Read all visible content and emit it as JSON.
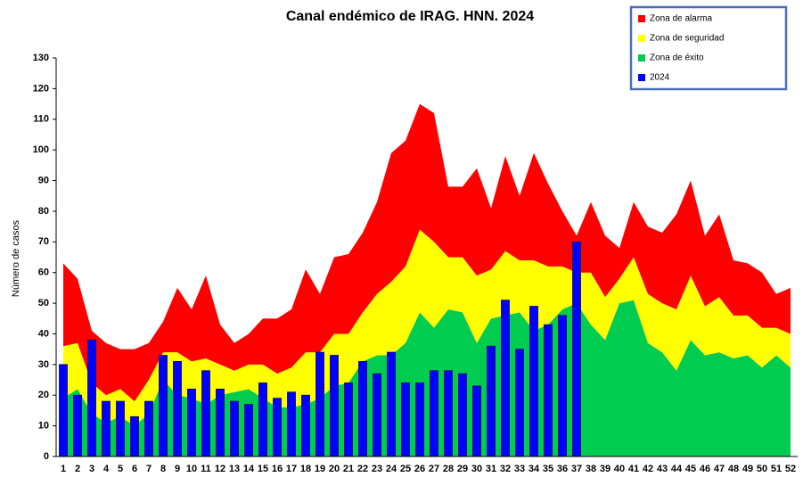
{
  "chart_data": {
    "type": "area",
    "title": "Canal endémico de IRAG. HNN. 2024",
    "y_label": "Número de casos",
    "categories": [
      "1",
      "2",
      "3",
      "4",
      "5",
      "6",
      "7",
      "8",
      "9",
      "10",
      "11",
      "12",
      "13",
      "14",
      "15",
      "16",
      "17",
      "18",
      "19",
      "20",
      "21",
      "22",
      "23",
      "24",
      "25",
      "26",
      "27",
      "28",
      "29",
      "30",
      "31",
      "32",
      "33",
      "34",
      "35",
      "36",
      "37",
      "38",
      "39",
      "40",
      "41",
      "42",
      "43",
      "44",
      "45",
      "46",
      "47",
      "48",
      "49",
      "50",
      "51",
      "52"
    ],
    "series": [
      {
        "name": "Zona de alarma",
        "color": "#ff0000",
        "type": "area",
        "values": [
          27,
          21,
          17,
          17,
          13,
          17,
          12,
          10,
          21,
          17,
          27,
          13,
          9,
          10,
          15,
          18,
          19,
          27,
          19,
          25,
          26,
          26,
          30,
          42,
          41,
          41,
          42,
          23,
          23,
          35,
          20,
          31,
          21,
          35,
          27,
          18,
          12,
          23,
          20,
          10,
          18,
          22,
          23,
          31,
          31,
          23,
          27,
          18,
          17,
          18,
          11,
          15
        ]
      },
      {
        "name": "Zona de seguridad",
        "color": "#ffff00",
        "type": "area",
        "values": [
          17,
          15,
          10,
          9,
          9,
          8,
          11,
          9,
          14,
          12,
          15,
          10,
          7,
          8,
          11,
          11,
          13,
          17,
          15,
          17,
          16,
          16,
          20,
          24,
          25,
          27,
          28,
          17,
          18,
          22,
          16,
          21,
          17,
          23,
          19,
          14,
          10,
          17,
          14,
          8,
          14,
          16,
          16,
          20,
          21,
          16,
          18,
          14,
          13,
          13,
          9,
          11
        ]
      },
      {
        "name": "Zona de éxito",
        "color": "#00cc50",
        "type": "area",
        "values": [
          19,
          22,
          14,
          11,
          13,
          10,
          14,
          25,
          20,
          19,
          17,
          20,
          21,
          22,
          19,
          16,
          16,
          17,
          19,
          23,
          24,
          31,
          33,
          33,
          37,
          47,
          42,
          48,
          47,
          37,
          45,
          46,
          47,
          41,
          43,
          48,
          50,
          43,
          38,
          50,
          51,
          37,
          34,
          28,
          38,
          33,
          34,
          32,
          33,
          29,
          33,
          29
        ]
      },
      {
        "name": "2024",
        "color": "#0000ff",
        "type": "bar",
        "values": [
          30,
          20,
          38,
          18,
          18,
          13,
          18,
          33,
          31,
          22,
          28,
          22,
          18,
          17,
          24,
          19,
          21,
          20,
          34,
          33,
          24,
          31,
          27,
          34,
          24,
          24,
          28,
          28,
          27,
          23,
          36,
          51,
          35,
          49,
          43,
          46,
          70,
          null,
          null,
          null,
          null,
          null,
          null,
          null,
          null,
          null,
          null,
          null,
          null,
          null,
          null,
          null
        ]
      }
    ],
    "ylim": [
      0,
      130
    ],
    "yticks": [
      0,
      10,
      20,
      30,
      40,
      50,
      60,
      70,
      80,
      90,
      100,
      110,
      120,
      130
    ]
  }
}
